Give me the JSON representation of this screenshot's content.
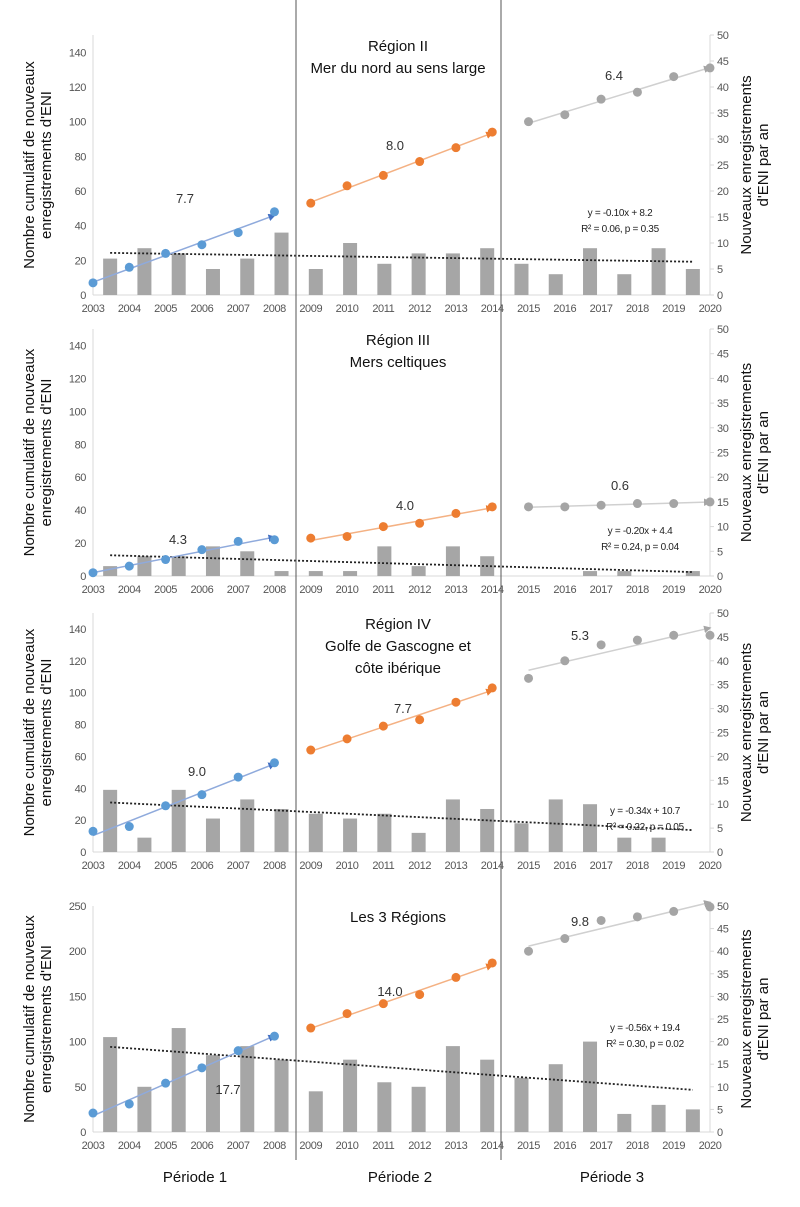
{
  "period_labels": [
    "Période 1",
    "Période 2",
    "Période 3"
  ],
  "colors": {
    "period1": "#5b9bd5",
    "period2": "#ed7d31",
    "period3": "#a5a5a5",
    "bars": "#a6a6a6",
    "trend": "#222222"
  },
  "chart_data": [
    {
      "type": "bar+line",
      "title_lines": [
        "Région II",
        "Mer du nord au sens large"
      ],
      "x_labels": [
        "2003",
        "2004",
        "2005",
        "2006",
        "2007",
        "2008",
        "2009",
        "2010",
        "2011",
        "2012",
        "2013",
        "2014",
        "2015",
        "2016",
        "2017",
        "2018",
        "2019",
        "2020"
      ],
      "left_axis": {
        "label_lines": [
          "Nombre cumulatif de nouveaux",
          "enregistrements d'ENI"
        ],
        "range": [
          0,
          150
        ],
        "ticks": [
          "0",
          "20",
          "40",
          "60",
          "80",
          "100",
          "120",
          "140"
        ]
      },
      "right_axis": {
        "label_lines": [
          "Nouveaux enregistrements",
          "d'ENI par an"
        ],
        "range": [
          0,
          50
        ],
        "ticks": [
          "0",
          "5",
          "10",
          "15",
          "20",
          "25",
          "30",
          "35",
          "40",
          "45",
          "50"
        ]
      },
      "bars": [
        7,
        9,
        8,
        5,
        7,
        12,
        5,
        10,
        6,
        8,
        8,
        9,
        6,
        4,
        9,
        4,
        9,
        5
      ],
      "cumulative": [
        7,
        16,
        24,
        29,
        36,
        48,
        53,
        63,
        69,
        77,
        85,
        94,
        100,
        104,
        113,
        117,
        126,
        131
      ],
      "rates": [
        "7.7",
        "8.0",
        "6.4"
      ],
      "trend": {
        "slope": -0.1,
        "intercept": 8.2,
        "equation": "y = -0.10x + 8.2",
        "stats": "R² = 0.06, p = 0.35"
      }
    },
    {
      "type": "bar+line",
      "title_lines": [
        "Région III",
        "Mers celtiques"
      ],
      "x_labels": [
        "2003",
        "2004",
        "2005",
        "2006",
        "2007",
        "2008",
        "2009",
        "2010",
        "2011",
        "2012",
        "2013",
        "2014",
        "2015",
        "2016",
        "2017",
        "2018",
        "2019",
        "2020"
      ],
      "left_axis": {
        "label_lines": [
          "Nombre cumulatif de nouveaux",
          "enregistrements d'ENI"
        ],
        "range": [
          0,
          150
        ],
        "ticks": [
          "0",
          "20",
          "40",
          "60",
          "80",
          "100",
          "120",
          "140"
        ]
      },
      "right_axis": {
        "label_lines": [
          "Nouveaux enregistrements",
          "d'ENI par an"
        ],
        "range": [
          0,
          50
        ],
        "ticks": [
          "0",
          "5",
          "10",
          "15",
          "20",
          "25",
          "30",
          "35",
          "40",
          "45",
          "50"
        ]
      },
      "bars": [
        2,
        4,
        4,
        6,
        5,
        1,
        1,
        1,
        6,
        2,
        6,
        4,
        0,
        0,
        1,
        1,
        0,
        1
      ],
      "cumulative": [
        2,
        6,
        10,
        16,
        21,
        22,
        23,
        24,
        30,
        32,
        38,
        42,
        42,
        42,
        43,
        44,
        44,
        45
      ],
      "rates": [
        "4.3",
        "4.0",
        "0.6"
      ],
      "trend": {
        "slope": -0.2,
        "intercept": 4.4,
        "equation": "y = -0.20x + 4.4",
        "stats": "R² = 0.24, p = 0.04"
      }
    },
    {
      "type": "bar+line",
      "title_lines": [
        "Région IV",
        "Golfe de Gascogne et",
        "côte ibérique"
      ],
      "x_labels": [
        "2003",
        "2004",
        "2005",
        "2006",
        "2007",
        "2008",
        "2009",
        "2010",
        "2011",
        "2012",
        "2013",
        "2014",
        "2015",
        "2016",
        "2017",
        "2018",
        "2019",
        "2020"
      ],
      "left_axis": {
        "label_lines": [
          "Nombre cumulatif de nouveaux",
          "enregistrements d'ENI"
        ],
        "range": [
          0,
          150
        ],
        "ticks": [
          "0",
          "20",
          "40",
          "60",
          "80",
          "100",
          "120",
          "140"
        ]
      },
      "right_axis": {
        "label_lines": [
          "Nouveaux enregistrements",
          "d'ENI par an"
        ],
        "range": [
          0,
          50
        ],
        "ticks": [
          "0",
          "5",
          "10",
          "15",
          "20",
          "25",
          "30",
          "35",
          "40",
          "45",
          "50"
        ]
      },
      "bars": [
        13,
        3,
        13,
        7,
        11,
        9,
        8,
        7,
        8,
        4,
        11,
        9,
        6,
        11,
        10,
        3,
        3,
        0
      ],
      "cumulative": [
        13,
        16,
        29,
        36,
        47,
        56,
        64,
        71,
        79,
        83,
        94,
        103,
        109,
        120,
        130,
        133,
        136,
        136
      ],
      "rates": [
        "9.0",
        "7.7",
        "5.3"
      ],
      "trend": {
        "slope": -0.34,
        "intercept": 10.7,
        "equation": "y = -0.34x + 10.7",
        "stats": "R² = 0.22, p = 0.05"
      }
    },
    {
      "type": "bar+line",
      "title_lines": [
        "Les 3 Régions"
      ],
      "x_labels": [
        "2003",
        "2004",
        "2005",
        "2006",
        "2007",
        "2008",
        "2009",
        "2010",
        "2011",
        "2012",
        "2013",
        "2014",
        "2015",
        "2016",
        "2017",
        "2018",
        "2019",
        "2020"
      ],
      "left_axis": {
        "label_lines": [
          "Nombre cumulatif de nouveaux",
          "enregistrements d'ENI"
        ],
        "range": [
          0,
          250
        ],
        "ticks": [
          "0",
          "50",
          "100",
          "150",
          "200",
          "250"
        ]
      },
      "right_axis": {
        "label_lines": [
          "Nouveaux enregistrements",
          "d'ENI par an"
        ],
        "range": [
          0,
          50
        ],
        "ticks": [
          "0",
          "5",
          "10",
          "15",
          "20",
          "25",
          "30",
          "35",
          "40",
          "45",
          "50"
        ]
      },
      "bars": [
        21,
        10,
        23,
        17,
        19,
        16,
        9,
        16,
        11,
        10,
        19,
        16,
        12,
        15,
        20,
        4,
        6,
        5
      ],
      "cumulative": [
        21,
        31,
        54,
        71,
        90,
        106,
        115,
        131,
        142,
        152,
        171,
        187,
        200,
        214,
        234,
        238,
        244,
        249
      ],
      "rates": [
        "17.7",
        "14.0",
        "9.8"
      ],
      "trend": {
        "slope": -0.56,
        "intercept": 19.4,
        "equation": "y = -0.56x + 19.4",
        "stats": "R² = 0.30, p = 0.02"
      }
    }
  ]
}
